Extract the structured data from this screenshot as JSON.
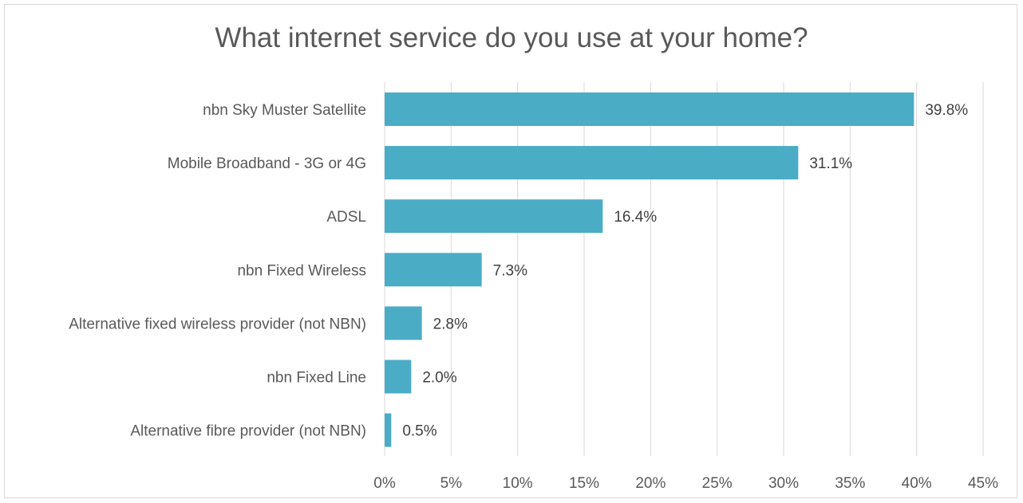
{
  "chart_data": {
    "type": "bar",
    "orientation": "horizontal",
    "title": "What internet service do you use at your home?",
    "xlabel": "",
    "ylabel": "",
    "categories": [
      "nbn Sky Muster Satellite",
      "Mobile Broadband - 3G or 4G",
      "ADSL",
      "nbn Fixed Wireless",
      "Alternative fixed wireless provider (not NBN)",
      "nbn Fixed Line",
      "Alternative fibre provider (not NBN)"
    ],
    "values": [
      39.8,
      31.1,
      16.4,
      7.3,
      2.8,
      2.0,
      0.5
    ],
    "data_labels": [
      "39.8%",
      "31.1%",
      "16.4%",
      "7.3%",
      "2.8%",
      "2.0%",
      "0.5%"
    ],
    "xlim": [
      0,
      45
    ],
    "ticks": [
      0,
      5,
      10,
      15,
      20,
      25,
      30,
      35,
      40,
      45
    ],
    "tick_labels": [
      "0%",
      "5%",
      "10%",
      "15%",
      "20%",
      "25%",
      "30%",
      "35%",
      "40%",
      "45%"
    ],
    "grid": true,
    "legend": "none",
    "bar_color": "#4bacc6",
    "grid_color": "#d9d9d9"
  }
}
